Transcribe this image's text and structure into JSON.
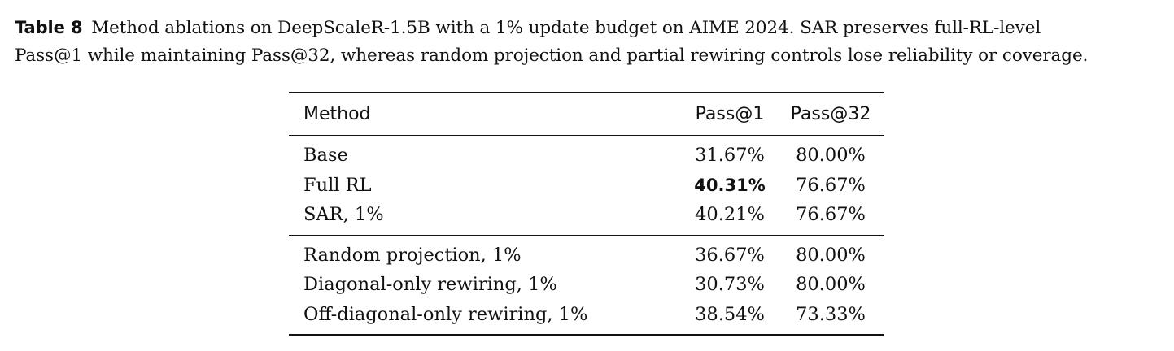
{
  "caption": {
    "label": "Table 8",
    "line1": "Method ablations on DeepScaleR-1.5B with a 1% update budget on AIME 2024. SAR preserves full-RL-level",
    "line2": "Pass@1 while maintaining Pass@32, whereas random projection and partial rewiring controls lose reliability or coverage."
  },
  "table": {
    "headers": [
      "Method",
      "Pass@1",
      "Pass@32"
    ],
    "rows": [
      {
        "method": "Base",
        "pass1": "31.67%",
        "pass32": "80.00%"
      },
      {
        "method": "Full RL",
        "pass1": "40.31%",
        "pass32": "76.67%",
        "pass1_bold": true
      },
      {
        "method": "SAR, 1%",
        "pass1": "40.21%",
        "pass32": "76.67%"
      },
      {
        "method": "Random projection, 1%",
        "pass1": "36.67%",
        "pass32": "80.00%"
      },
      {
        "method": "Diagonal-only rewiring, 1%",
        "pass1": "30.73%",
        "pass32": "80.00%"
      },
      {
        "method": "Off-diagonal-only rewiring, 1%",
        "pass1": "38.54%",
        "pass32": "73.33%"
      }
    ]
  }
}
